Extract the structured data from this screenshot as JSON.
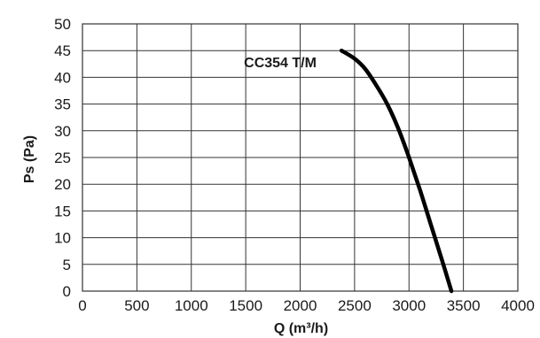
{
  "chart_data": {
    "type": "line",
    "xlabel": "Q (m³/h)",
    "ylabel": "Ps (Pa)",
    "xlim": [
      0,
      4000
    ],
    "ylim": [
      0,
      50
    ],
    "x_ticks": [
      0,
      500,
      1000,
      1500,
      2000,
      2500,
      3000,
      3500,
      4000
    ],
    "y_ticks": [
      0,
      5,
      10,
      15,
      20,
      25,
      30,
      35,
      40,
      45,
      50
    ],
    "grid": true,
    "series": [
      {
        "name": "CC354 T/M",
        "color": "#000000",
        "x": [
          2380,
          2500,
          2600,
          2700,
          2800,
          2900,
          3000,
          3100,
          3200,
          3300,
          3390
        ],
        "y": [
          45,
          43.5,
          41.5,
          38.5,
          35,
          30.5,
          25,
          19,
          12.5,
          6,
          0
        ]
      }
    ]
  }
}
